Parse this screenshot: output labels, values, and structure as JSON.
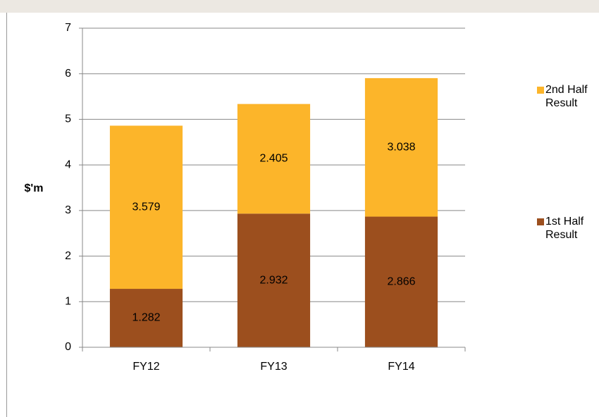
{
  "chart_data": {
    "type": "stacked_bar",
    "y_label": "$'m",
    "categories": [
      "FY12",
      "FY13",
      "FY14"
    ],
    "series": [
      {
        "name": "1st Half Result",
        "color": "#9c4f1e",
        "values": [
          1.282,
          2.932,
          2.866
        ]
      },
      {
        "name": "2nd Half Result",
        "color": "#fcb52a",
        "values": [
          3.579,
          2.405,
          3.038
        ]
      }
    ],
    "ylim": [
      0,
      7
    ],
    "yticks": [
      0,
      1,
      2,
      3,
      4,
      5,
      6,
      7
    ],
    "grid": true,
    "legend": "right"
  }
}
